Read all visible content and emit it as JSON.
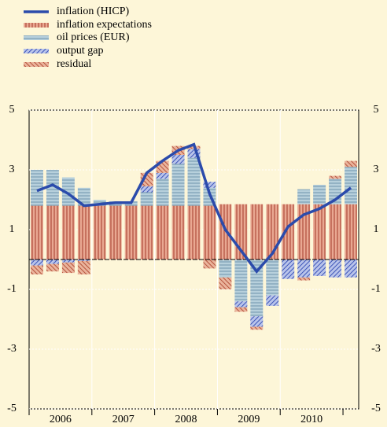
{
  "chart_data": {
    "type": "stacked_bar_line",
    "categories": [
      null,
      null,
      null,
      null,
      null,
      null,
      null,
      null,
      null,
      null,
      null,
      null,
      null,
      null,
      null,
      null,
      null,
      null,
      null,
      null,
      null
    ],
    "year_labels": [
      "2006",
      "2007",
      "2008",
      "2009",
      "2010"
    ],
    "line": {
      "name": "inflation (HICP)",
      "color": "#2b4bab",
      "values": [
        2.3,
        2.5,
        2.2,
        1.8,
        1.85,
        1.9,
        1.9,
        2.9,
        3.3,
        3.65,
        3.85,
        2.2,
        1.0,
        0.3,
        -0.4,
        0.2,
        1.1,
        1.5,
        1.7,
        2.0,
        2.4
      ]
    },
    "series": [
      {
        "name": "inflation expectations",
        "color": "#e9a892",
        "pattern_color": "#a33a2a",
        "values": [
          1.8,
          1.8,
          1.8,
          1.8,
          1.8,
          1.8,
          1.8,
          1.8,
          1.8,
          1.8,
          1.8,
          1.8,
          1.85,
          1.85,
          1.85,
          1.85,
          1.85,
          1.85,
          1.85,
          1.85,
          1.85
        ]
      },
      {
        "name": "oil prices (EUR)",
        "color": "#b7d0dc",
        "pattern_color": "#6f93ad",
        "values": [
          1.2,
          1.2,
          0.95,
          0.6,
          0.2,
          0.15,
          0.15,
          0.45,
          0.9,
          1.4,
          1.6,
          0.6,
          -0.6,
          -1.4,
          -1.9,
          -1.2,
          0,
          0.5,
          0.65,
          0.85,
          1.25
        ]
      },
      {
        "name": "output gap",
        "color": "#b9c4ea",
        "pattern_color": "#3d55b8",
        "values": [
          -0.2,
          -0.15,
          -0.1,
          -0.05,
          0,
          0,
          0,
          0.2,
          0.2,
          0.3,
          0.3,
          0.2,
          0,
          -0.2,
          -0.35,
          -0.35,
          -0.65,
          -0.6,
          -0.55,
          -0.6,
          -0.6
        ]
      },
      {
        "name": "residual",
        "color": "#eab49c",
        "pattern_color": "#b5533c",
        "values": [
          -0.3,
          -0.25,
          -0.35,
          -0.45,
          0,
          0,
          0,
          0.45,
          0.4,
          0.3,
          0.1,
          -0.3,
          -0.4,
          -0.15,
          -0.1,
          0,
          0,
          -0.1,
          0,
          0.1,
          0.2
        ]
      }
    ],
    "ylim": [
      -5,
      5
    ],
    "yticks": [
      -5,
      -3,
      -1,
      1,
      3,
      5
    ],
    "grid": true
  }
}
